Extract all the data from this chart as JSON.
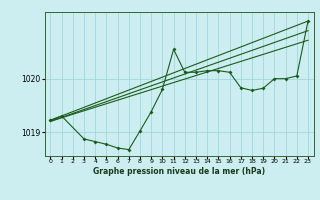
{
  "title": "Graphe pression niveau de la mer (hPa)",
  "bg_color": "#cceef0",
  "grid_color": "#99d4d8",
  "line_color": "#1a5c1a",
  "xlim": [
    -0.5,
    23.5
  ],
  "ylim": [
    1018.55,
    1021.25
  ],
  "yticks": [
    1019,
    1020
  ],
  "xticks": [
    0,
    1,
    2,
    3,
    4,
    5,
    6,
    7,
    8,
    9,
    10,
    11,
    12,
    13,
    14,
    15,
    16,
    17,
    18,
    19,
    20,
    21,
    22,
    23
  ],
  "trend1_x": [
    0,
    23
  ],
  "trend1_y": [
    1019.22,
    1021.08
  ],
  "trend2_x": [
    0,
    23
  ],
  "trend2_y": [
    1019.2,
    1020.9
  ],
  "trend3_x": [
    0,
    23
  ],
  "trend3_y": [
    1019.2,
    1020.72
  ],
  "main_x": [
    0,
    1,
    3,
    4,
    5,
    6,
    7,
    8,
    9,
    10,
    11,
    12,
    13,
    14,
    15,
    16,
    17,
    18,
    19,
    20,
    21,
    22,
    23
  ],
  "main_y": [
    1019.22,
    1019.3,
    1018.87,
    1018.82,
    1018.77,
    1018.7,
    1018.67,
    1019.02,
    1019.38,
    1019.8,
    1020.55,
    1020.12,
    1020.12,
    1020.15,
    1020.15,
    1020.12,
    1019.83,
    1019.78,
    1019.82,
    1020.0,
    1020.0,
    1020.05,
    1021.08
  ]
}
